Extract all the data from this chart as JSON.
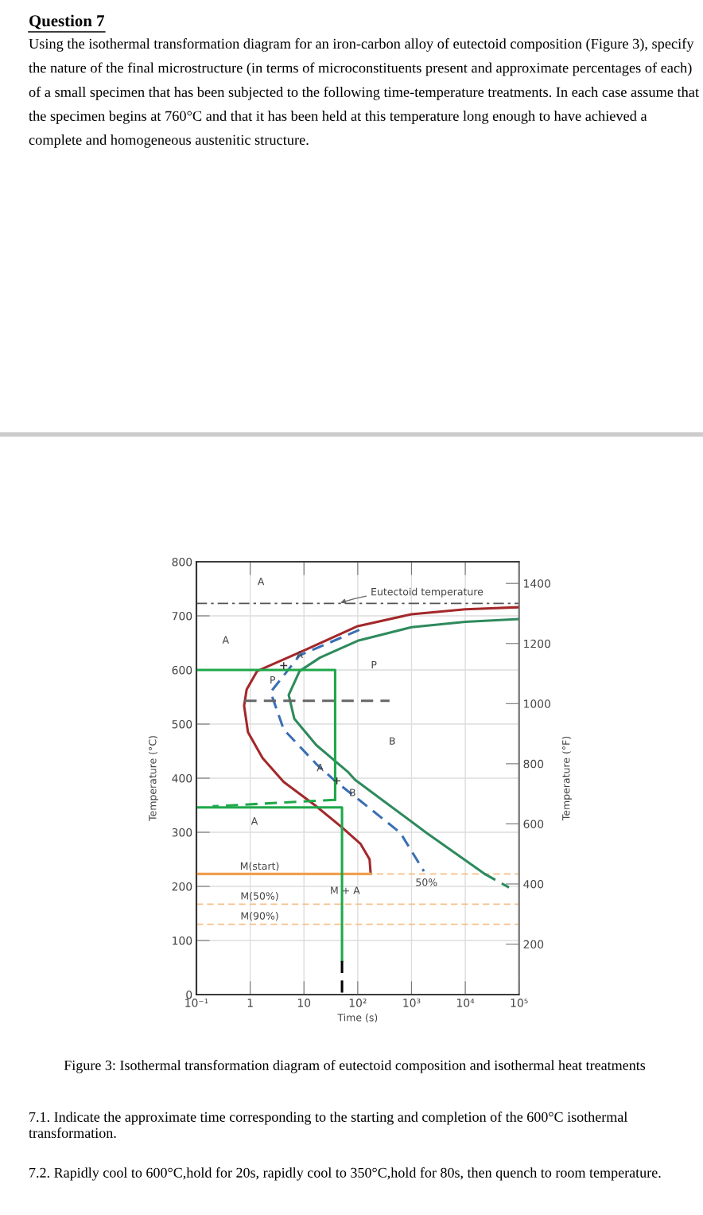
{
  "chart_data": {
    "type": "line",
    "title": "Question 7",
    "subtitle": "Using the isothermal transformation diagram for an iron-carbon alloy of eutectoid composition (Figure 3), specify the nature of the final microstructure (in terms of microconstituents present and approximate percentages of each) of a small specimen that has been subjected to the following time-temperature treatments. In each case assume that the specimen begins at 760°C and that it has been held at this temperature long enough to have achieved a complete and homogeneous austenitic structure.",
    "xlabel": "Time (s)",
    "ylabel": "Temperature (°C)",
    "y2label": "Temperature (°F)",
    "log": "x",
    "grid": true,
    "xlim": [
      0.1,
      100000
    ],
    "xticks": [
      {
        "value": 0.1,
        "label": "10⁻¹"
      },
      1,
      10,
      {
        "value": 100,
        "label": "10²"
      },
      {
        "value": 1000,
        "label": "10³"
      },
      {
        "value": 10000,
        "label": "10⁴"
      },
      {
        "value": 100000,
        "label": "10⁵"
      }
    ],
    "ylim": [
      0,
      800
    ],
    "yticks": [
      0,
      100,
      200,
      300,
      400,
      500,
      600,
      700,
      800
    ],
    "y2lim": [
      32,
      1472
    ],
    "y2ticks": [
      200,
      400,
      600,
      800,
      1000,
      1200,
      1400
    ],
    "series": [
      {
        "type": "line",
        "color": "#a3282a",
        "line_style": "solid",
        "x": [
          100000,
          10000,
          1000,
          100,
          10.5,
          1.35,
          0.86,
          0.77,
          0.91,
          1.7,
          4.2,
          16,
          51,
          112,
          166,
          174
        ],
        "values": [
          716,
          712,
          703,
          681,
          637,
          598,
          564,
          534,
          485,
          437,
          393,
          350,
          309,
          279,
          250,
          223
        ]
      },
      {
        "type": "line",
        "color": "#2e8a5c",
        "line_style": "solid",
        "x": [
          100000,
          10000,
          1000,
          100,
          20,
          8.3,
          5.2,
          6.6,
          17,
          65,
          89,
          1900,
          23000
        ],
        "values": [
          694,
          689,
          679,
          654,
          623,
          598,
          554,
          510,
          461,
          412,
          397,
          299,
          223
        ]
      },
      {
        "type": "line",
        "color": "#2e8a5c",
        "line_style": "dashed",
        "x": [
          23000,
          65000
        ],
        "values": [
          223,
          198
        ]
      },
      {
        "type": "line",
        "color": "#3a6fb5",
        "line_style": "dashed",
        "x": [
          107,
          8.3,
          2.4,
          4.2,
          17,
          41,
          112,
          620,
          1700
        ],
        "values": [
          674,
          627,
          559,
          490,
          426,
          392,
          358,
          299,
          228
        ]
      },
      {
        "type": "line",
        "color": "#f0a050",
        "line_style": "solid",
        "x": [
          0.1,
          174
        ],
        "values": [
          223,
          223
        ]
      },
      {
        "type": "line",
        "color": "#666666",
        "line_style": "dashed",
        "x": [
          0.78,
          390
        ],
        "values": [
          543,
          543
        ]
      },
      {
        "type": "line",
        "color": "#1ea84a",
        "line_style": "solid",
        "x": [
          0.1,
          38,
          38
        ],
        "values": [
          600,
          600,
          360
        ]
      },
      {
        "type": "line",
        "color": "#1ea84a",
        "line_style": "dashed",
        "x": [
          38,
          0.2
        ],
        "values": [
          360,
          348
        ]
      },
      {
        "type": "line",
        "color": "#1ea84a",
        "line_style": "solid",
        "x": [
          0.1,
          51,
          51
        ],
        "values": [
          346,
          346,
          62
        ]
      },
      {
        "type": "line",
        "color": "#000000",
        "line_style": "dashed",
        "x": [
          51,
          51
        ],
        "values": [
          62,
          0
        ]
      },
      {
        "type": "scatter",
        "color": "#333333",
        "marker": "cross",
        "x": [
          4.2,
          41
        ],
        "values": [
          608,
          395
        ]
      }
    ],
    "ref_lines": [
      {
        "axis": "y",
        "value": 723,
        "label": "Eutectoid temperature",
        "color": "#555555",
        "line_style": "dashdot"
      },
      {
        "axis": "y",
        "value": 223,
        "color": "#f5c08a",
        "line_style": "dashed"
      },
      {
        "axis": "y",
        "value": 167,
        "color": "#f5c08a",
        "line_style": "dashed"
      },
      {
        "axis": "y",
        "value": 130,
        "color": "#f5c08a",
        "line_style": "dashed"
      }
    ],
    "annotations": [
      "Figure 3: Isothermal transformation diagram of eutectoid composition and isothermal heat treatments",
      "7.1. Indicate the approximate time corresponding to the starting and completion of the 600°C isothermal transformation.",
      "7.2. Rapidly cool to 600°C,hold for 20s, rapidly cool to 350°C,hold for 80s, then quench to room temperature.",
      "A",
      "A",
      {
        "text": "A",
        "x": 8.3,
        "y": 627
      },
      "P",
      "P",
      "B",
      {
        "text": "A",
        "x": 20,
        "y": 418
      },
      {
        "text": "B",
        "x": 80,
        "y": 372
      },
      "A",
      "M(start)",
      "50%",
      {
        "text": "M + A",
        "x": 58,
        "y": 191
      },
      "M(50%)",
      "M(90%)"
    ]
  }
}
